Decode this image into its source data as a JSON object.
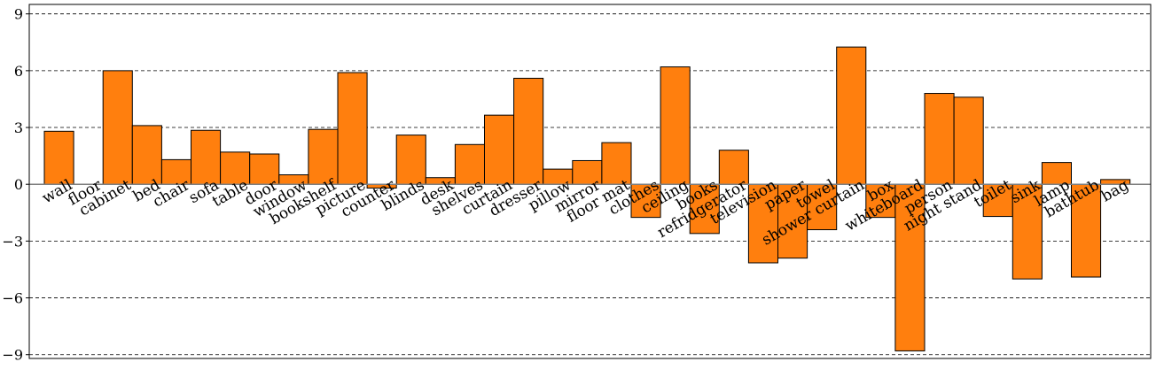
{
  "chart_data": {
    "type": "bar",
    "categories": [
      "wall",
      "floor",
      "cabinet",
      "bed",
      "chair",
      "sofa",
      "table",
      "door",
      "window",
      "bookshelf",
      "picture",
      "counter",
      "blinds",
      "desk",
      "shelves",
      "curtain",
      "dresser",
      "pillow",
      "mirror",
      "floor mat",
      "clothes",
      "ceiling",
      "books",
      "refridgerator",
      "television",
      "paper",
      "towel",
      "shower curtain",
      "box",
      "whiteboard",
      "person",
      "night stand",
      "toilet",
      "sink",
      "lamp",
      "bathtub",
      "bag"
    ],
    "values": [
      2.8,
      0.0,
      6.0,
      3.1,
      1.3,
      2.85,
      1.7,
      1.6,
      0.5,
      2.9,
      5.9,
      -0.2,
      2.6,
      0.35,
      2.1,
      3.65,
      5.6,
      0.8,
      1.25,
      2.2,
      -1.75,
      6.2,
      -2.6,
      1.8,
      -4.15,
      -3.9,
      -2.4,
      7.25,
      -1.75,
      -8.8,
      4.8,
      4.6,
      -1.7,
      -5.0,
      1.15,
      -4.9,
      0.25
    ],
    "title": "",
    "xlabel": "",
    "ylabel": "",
    "ylim": [
      -9.2,
      9.5
    ],
    "yticks": [
      9,
      6,
      3,
      0,
      -3,
      -6,
      -9
    ],
    "ytick_labels": [
      "9",
      "6",
      "3",
      "0",
      "−3",
      "−6",
      "−9"
    ],
    "grid": true,
    "bar_color": "#ff7f0e",
    "zero_line_color": "#7f7f7f"
  }
}
